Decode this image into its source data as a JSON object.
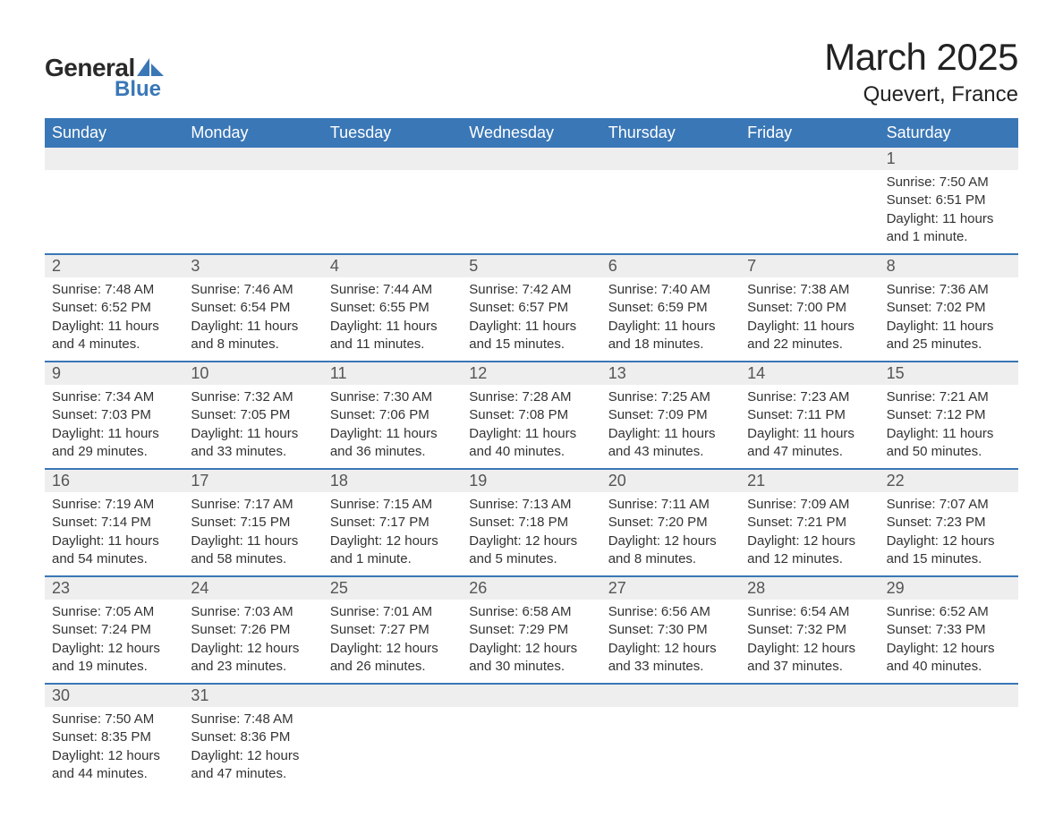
{
  "logo": {
    "general": "General",
    "blue": "Blue",
    "shape_color": "#3a77b6"
  },
  "title": {
    "main": "March 2025",
    "sub": "Quevert, France"
  },
  "style": {
    "header_bg": "#3a77b6",
    "header_fg": "#ffffff",
    "daynum_bg": "#eeeeee",
    "daynum_fg": "#555555",
    "text_fg": "#333333",
    "row_border": "#3a77b6",
    "head_fontsize": 18,
    "daynum_fontsize": 18,
    "body_fontsize": 15,
    "title_fontsize": 42,
    "subtitle_fontsize": 24
  },
  "weekdays": [
    "Sunday",
    "Monday",
    "Tuesday",
    "Wednesday",
    "Thursday",
    "Friday",
    "Saturday"
  ],
  "weeks": [
    [
      null,
      null,
      null,
      null,
      null,
      null,
      {
        "n": "1",
        "sr": "Sunrise: 7:50 AM",
        "ss": "Sunset: 6:51 PM",
        "d1": "Daylight: 11 hours",
        "d2": "and 1 minute."
      }
    ],
    [
      {
        "n": "2",
        "sr": "Sunrise: 7:48 AM",
        "ss": "Sunset: 6:52 PM",
        "d1": "Daylight: 11 hours",
        "d2": "and 4 minutes."
      },
      {
        "n": "3",
        "sr": "Sunrise: 7:46 AM",
        "ss": "Sunset: 6:54 PM",
        "d1": "Daylight: 11 hours",
        "d2": "and 8 minutes."
      },
      {
        "n": "4",
        "sr": "Sunrise: 7:44 AM",
        "ss": "Sunset: 6:55 PM",
        "d1": "Daylight: 11 hours",
        "d2": "and 11 minutes."
      },
      {
        "n": "5",
        "sr": "Sunrise: 7:42 AM",
        "ss": "Sunset: 6:57 PM",
        "d1": "Daylight: 11 hours",
        "d2": "and 15 minutes."
      },
      {
        "n": "6",
        "sr": "Sunrise: 7:40 AM",
        "ss": "Sunset: 6:59 PM",
        "d1": "Daylight: 11 hours",
        "d2": "and 18 minutes."
      },
      {
        "n": "7",
        "sr": "Sunrise: 7:38 AM",
        "ss": "Sunset: 7:00 PM",
        "d1": "Daylight: 11 hours",
        "d2": "and 22 minutes."
      },
      {
        "n": "8",
        "sr": "Sunrise: 7:36 AM",
        "ss": "Sunset: 7:02 PM",
        "d1": "Daylight: 11 hours",
        "d2": "and 25 minutes."
      }
    ],
    [
      {
        "n": "9",
        "sr": "Sunrise: 7:34 AM",
        "ss": "Sunset: 7:03 PM",
        "d1": "Daylight: 11 hours",
        "d2": "and 29 minutes."
      },
      {
        "n": "10",
        "sr": "Sunrise: 7:32 AM",
        "ss": "Sunset: 7:05 PM",
        "d1": "Daylight: 11 hours",
        "d2": "and 33 minutes."
      },
      {
        "n": "11",
        "sr": "Sunrise: 7:30 AM",
        "ss": "Sunset: 7:06 PM",
        "d1": "Daylight: 11 hours",
        "d2": "and 36 minutes."
      },
      {
        "n": "12",
        "sr": "Sunrise: 7:28 AM",
        "ss": "Sunset: 7:08 PM",
        "d1": "Daylight: 11 hours",
        "d2": "and 40 minutes."
      },
      {
        "n": "13",
        "sr": "Sunrise: 7:25 AM",
        "ss": "Sunset: 7:09 PM",
        "d1": "Daylight: 11 hours",
        "d2": "and 43 minutes."
      },
      {
        "n": "14",
        "sr": "Sunrise: 7:23 AM",
        "ss": "Sunset: 7:11 PM",
        "d1": "Daylight: 11 hours",
        "d2": "and 47 minutes."
      },
      {
        "n": "15",
        "sr": "Sunrise: 7:21 AM",
        "ss": "Sunset: 7:12 PM",
        "d1": "Daylight: 11 hours",
        "d2": "and 50 minutes."
      }
    ],
    [
      {
        "n": "16",
        "sr": "Sunrise: 7:19 AM",
        "ss": "Sunset: 7:14 PM",
        "d1": "Daylight: 11 hours",
        "d2": "and 54 minutes."
      },
      {
        "n": "17",
        "sr": "Sunrise: 7:17 AM",
        "ss": "Sunset: 7:15 PM",
        "d1": "Daylight: 11 hours",
        "d2": "and 58 minutes."
      },
      {
        "n": "18",
        "sr": "Sunrise: 7:15 AM",
        "ss": "Sunset: 7:17 PM",
        "d1": "Daylight: 12 hours",
        "d2": "and 1 minute."
      },
      {
        "n": "19",
        "sr": "Sunrise: 7:13 AM",
        "ss": "Sunset: 7:18 PM",
        "d1": "Daylight: 12 hours",
        "d2": "and 5 minutes."
      },
      {
        "n": "20",
        "sr": "Sunrise: 7:11 AM",
        "ss": "Sunset: 7:20 PM",
        "d1": "Daylight: 12 hours",
        "d2": "and 8 minutes."
      },
      {
        "n": "21",
        "sr": "Sunrise: 7:09 AM",
        "ss": "Sunset: 7:21 PM",
        "d1": "Daylight: 12 hours",
        "d2": "and 12 minutes."
      },
      {
        "n": "22",
        "sr": "Sunrise: 7:07 AM",
        "ss": "Sunset: 7:23 PM",
        "d1": "Daylight: 12 hours",
        "d2": "and 15 minutes."
      }
    ],
    [
      {
        "n": "23",
        "sr": "Sunrise: 7:05 AM",
        "ss": "Sunset: 7:24 PM",
        "d1": "Daylight: 12 hours",
        "d2": "and 19 minutes."
      },
      {
        "n": "24",
        "sr": "Sunrise: 7:03 AM",
        "ss": "Sunset: 7:26 PM",
        "d1": "Daylight: 12 hours",
        "d2": "and 23 minutes."
      },
      {
        "n": "25",
        "sr": "Sunrise: 7:01 AM",
        "ss": "Sunset: 7:27 PM",
        "d1": "Daylight: 12 hours",
        "d2": "and 26 minutes."
      },
      {
        "n": "26",
        "sr": "Sunrise: 6:58 AM",
        "ss": "Sunset: 7:29 PM",
        "d1": "Daylight: 12 hours",
        "d2": "and 30 minutes."
      },
      {
        "n": "27",
        "sr": "Sunrise: 6:56 AM",
        "ss": "Sunset: 7:30 PM",
        "d1": "Daylight: 12 hours",
        "d2": "and 33 minutes."
      },
      {
        "n": "28",
        "sr": "Sunrise: 6:54 AM",
        "ss": "Sunset: 7:32 PM",
        "d1": "Daylight: 12 hours",
        "d2": "and 37 minutes."
      },
      {
        "n": "29",
        "sr": "Sunrise: 6:52 AM",
        "ss": "Sunset: 7:33 PM",
        "d1": "Daylight: 12 hours",
        "d2": "and 40 minutes."
      }
    ],
    [
      {
        "n": "30",
        "sr": "Sunrise: 7:50 AM",
        "ss": "Sunset: 8:35 PM",
        "d1": "Daylight: 12 hours",
        "d2": "and 44 minutes."
      },
      {
        "n": "31",
        "sr": "Sunrise: 7:48 AM",
        "ss": "Sunset: 8:36 PM",
        "d1": "Daylight: 12 hours",
        "d2": "and 47 minutes."
      },
      null,
      null,
      null,
      null,
      null
    ]
  ]
}
